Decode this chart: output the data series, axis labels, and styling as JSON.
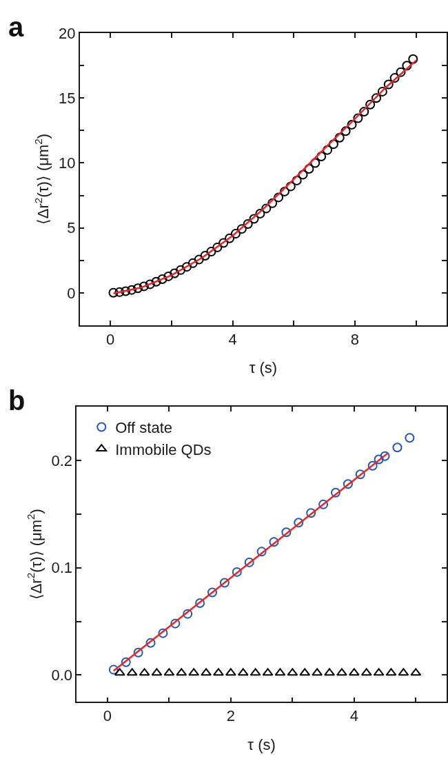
{
  "chart_data": [
    {
      "type": "scatter",
      "title": "a",
      "xlabel": "τ (s)",
      "ylabel": "⟨Δr$^{2}$(τ)⟩ (μm$^{2}$)",
      "xlim": [
        -1,
        11
      ],
      "ylim": [
        -2.5,
        20
      ],
      "xticks": [
        0,
        {
          "value": 2,
          "label": null
        },
        4,
        {
          "value": 6,
          "label": null
        },
        8,
        {
          "value": 10,
          "label": null
        }
      ],
      "yticks": [
        {
          "value": -2.5,
          "label": null
        },
        0,
        {
          "value": 2.5,
          "label": null
        },
        5,
        {
          "value": 7.5,
          "label": null
        },
        10,
        {
          "value": 12.5,
          "label": null
        },
        15,
        {
          "value": 17.5,
          "label": null
        },
        20
      ],
      "legend": false,
      "series": [
        {
          "marker": "circle",
          "color": "#000000",
          "x": [
            0.1,
            0.3,
            0.5,
            0.7,
            0.9,
            1.1,
            1.3,
            1.5,
            1.7,
            1.9,
            2.1,
            2.3,
            2.5,
            2.7,
            2.9,
            3.1,
            3.3,
            3.5,
            3.7,
            3.9,
            4.1,
            4.3,
            4.5,
            4.7,
            4.9,
            5.1,
            5.3,
            5.5,
            5.7,
            5.9,
            6.1,
            6.3,
            6.5,
            6.7,
            6.9,
            7.1,
            7.3,
            7.5,
            7.7,
            7.9,
            8.1,
            8.3,
            8.5,
            8.7,
            8.9,
            9.1,
            9.3,
            9.5,
            9.7,
            9.9
          ],
          "values": [
            0.0,
            0.05,
            0.12,
            0.22,
            0.35,
            0.5,
            0.66,
            0.85,
            1.05,
            1.27,
            1.5,
            1.75,
            2.0,
            2.28,
            2.56,
            2.86,
            3.17,
            3.5,
            3.84,
            4.2,
            4.55,
            4.92,
            5.3,
            5.7,
            6.1,
            6.5,
            6.9,
            7.35,
            7.8,
            8.2,
            8.65,
            9.1,
            9.55,
            10.0,
            10.5,
            11.0,
            11.45,
            11.95,
            12.45,
            12.95,
            13.45,
            13.95,
            14.5,
            15.0,
            15.5,
            16.05,
            16.55,
            17.0,
            17.5,
            18.0
          ]
        },
        {
          "type": "line",
          "marker": "none",
          "line_style": "solid",
          "color": "#e8262a",
          "x": [
            0.1,
            1,
            2,
            3,
            4,
            5,
            6,
            7,
            8,
            9,
            10
          ],
          "values": [
            -0.05,
            0.4,
            1.35,
            2.7,
            4.4,
            6.45,
            8.75,
            11.1,
            13.4,
            15.8,
            17.9
          ]
        }
      ]
    },
    {
      "type": "scatter",
      "title": "b",
      "xlabel": "τ (s)",
      "ylabel": "⟨Δr$^{2}$(τ)⟩ (μm$^{2}$)",
      "xlim": [
        -0.5,
        5.5
      ],
      "ylim": [
        -0.025,
        0.25
      ],
      "xticks": [
        0,
        {
          "value": 1,
          "label": null
        },
        2,
        {
          "value": 3,
          "label": null
        },
        4,
        {
          "value": 5,
          "label": null
        }
      ],
      "yticks": [
        {
          "value": 0,
          "label": "0.0"
        },
        {
          "value": 0.05,
          "label": null
        },
        0.1,
        {
          "value": 0.15,
          "label": null
        },
        0.2
      ],
      "legend": "top left",
      "series": [
        {
          "name": "Off state",
          "marker": "circle",
          "color": "#2357b5",
          "x": [
            0.1,
            0.3,
            0.5,
            0.7,
            0.9,
            1.1,
            1.3,
            1.5,
            1.7,
            1.9,
            2.1,
            2.3,
            2.5,
            2.7,
            2.9,
            3.1,
            3.3,
            3.5,
            3.7,
            3.9,
            4.1,
            4.3,
            4.4,
            4.5,
            4.7,
            4.9
          ],
          "values": [
            0.005,
            0.012,
            0.021,
            0.03,
            0.039,
            0.048,
            0.057,
            0.067,
            0.077,
            0.086,
            0.096,
            0.105,
            0.115,
            0.124,
            0.133,
            0.142,
            0.151,
            0.159,
            0.17,
            0.178,
            0.187,
            0.195,
            0.201,
            0.204,
            0.212,
            0.221
          ]
        },
        {
          "name": "Immobile QDs",
          "marker": "triangle",
          "color": "#000000",
          "x": [
            0.2,
            0.4,
            0.6,
            0.8,
            1.0,
            1.2,
            1.4,
            1.6,
            1.8,
            2.0,
            2.2,
            2.4,
            2.6,
            2.8,
            3.0,
            3.2,
            3.4,
            3.6,
            3.8,
            4.0,
            4.2,
            4.4,
            4.6,
            4.8,
            5.0
          ],
          "values": [
            0.002,
            0.002,
            0.002,
            0.002,
            0.002,
            0.002,
            0.002,
            0.002,
            0.002,
            0.002,
            0.002,
            0.002,
            0.002,
            0.002,
            0.002,
            0.002,
            0.002,
            0.002,
            0.002,
            0.002,
            0.002,
            0.002,
            0.002,
            0.002,
            0.002
          ]
        },
        {
          "type": "line",
          "marker": "none",
          "line_style": "solid",
          "color": "#e8262a",
          "x": [
            0.1,
            4.55
          ],
          "values": [
            0.004,
            0.207
          ]
        }
      ]
    }
  ]
}
